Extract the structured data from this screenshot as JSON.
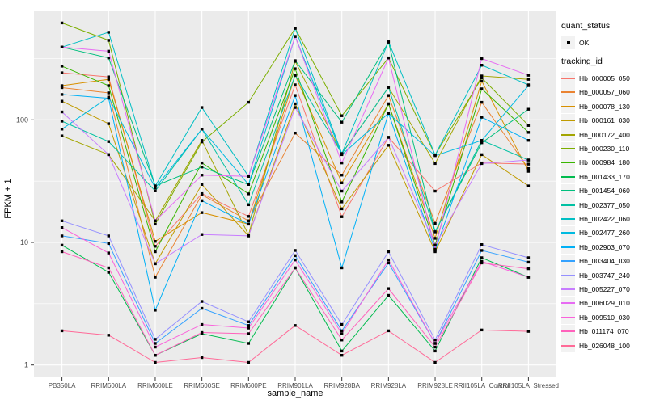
{
  "figure": {
    "background": "#FFFFFF",
    "panel_background": "#EBEBEB",
    "grid_major_color": "#FFFFFF",
    "grid_minor_color": "#FFFFFF",
    "tick_color": "#333333",
    "tick_label_color": "#4D4D4D",
    "point_color": "#000000"
  },
  "chart_data": {
    "type": "line",
    "title": "",
    "xlabel": "sample_name",
    "ylabel": "FPKM + 1",
    "y_scale": "log10",
    "y_ticks": [
      1,
      10,
      100
    ],
    "y_minor_ticks": [
      3.162,
      31.62,
      316.2
    ],
    "ylim": [
      0.79,
      770
    ],
    "grid": true,
    "legend_position": "right",
    "point_shape": "small-black-square",
    "categories": [
      "PB350LA",
      "RRIM600LA",
      "RRIM600LE",
      "RRIM600SE",
      "RRIM600PE",
      "RRIM901LA",
      "RRIM928BA",
      "RRIM928LA",
      "RRIM928LE",
      "RRII105LA_Control",
      "RRII105LA_Stressed"
    ],
    "series": [
      {
        "name": "Hb_000005_050",
        "color": "#F8766D",
        "values": [
          242,
          224,
          9.3,
          25,
          16.3,
          193,
          16.2,
          72,
          26.2,
          44.5,
          43.5
        ]
      },
      {
        "name": "Hb_000057_060",
        "color": "#EA8331",
        "values": [
          183,
          166,
          5.2,
          24.5,
          15,
          78,
          35.4,
          158,
          14.3,
          139,
          40
        ]
      },
      {
        "name": "Hb_000078_130",
        "color": "#D89000",
        "values": [
          190,
          214,
          10.2,
          17.5,
          14.1,
          231,
          30.6,
          135,
          10.8,
          207,
          38
        ]
      },
      {
        "name": "Hb_000161_030",
        "color": "#C09B00",
        "values": [
          142,
          93,
          6.7,
          29.7,
          11.3,
          135,
          18.8,
          62,
          8.4,
          52,
          28.9
        ]
      },
      {
        "name": "Hb_000172_400",
        "color": "#A3A500",
        "values": [
          74,
          52,
          15,
          68,
          11.5,
          300,
          53,
          184,
          44,
          228,
          214
        ]
      },
      {
        "name": "Hb_000230_110",
        "color": "#7CAE00",
        "values": [
          617,
          445,
          14.1,
          66,
          139,
          558,
          108,
          320,
          51.7,
          220,
          90
        ]
      },
      {
        "name": "Hb_000984_180",
        "color": "#39B600",
        "values": [
          274,
          190,
          8.4,
          44.5,
          24.9,
          261,
          21.4,
          135,
          9.5,
          179,
          79
        ]
      },
      {
        "name": "Hb_001433_170",
        "color": "#00BB4E",
        "values": [
          9.5,
          5.7,
          1.2,
          1.8,
          1.5,
          6.2,
          1.3,
          3.7,
          1.3,
          7.5,
          5.2
        ]
      },
      {
        "name": "Hb_001454_060",
        "color": "#00BF7D",
        "values": [
          392,
          320,
          28.9,
          41.2,
          29.7,
          304,
          95.7,
          430,
          12.2,
          65,
          122
        ]
      },
      {
        "name": "Hb_002377_050",
        "color": "#00C1A3",
        "values": [
          97.5,
          66.5,
          26.3,
          84,
          20.3,
          231,
          53,
          184,
          12.2,
          68,
          47
        ]
      },
      {
        "name": "Hb_002422_060",
        "color": "#00BFC4",
        "values": [
          392,
          518,
          28.9,
          126,
          34.6,
          558,
          53,
          433,
          51.7,
          279,
          193
        ]
      },
      {
        "name": "Hb_002477_260",
        "color": "#00BAE0",
        "values": [
          84,
          153,
          27.8,
          84,
          29.7,
          479,
          52,
          113,
          51,
          68,
          190
        ]
      },
      {
        "name": "Hb_002903_070",
        "color": "#00B0F6",
        "values": [
          161,
          150,
          2.8,
          21.9,
          14.1,
          158,
          6.2,
          113,
          8.6,
          105,
          68
        ]
      },
      {
        "name": "Hb_003404_030",
        "color": "#35A2FF",
        "values": [
          11.3,
          9.8,
          1.5,
          2.9,
          2.1,
          7.8,
          1.9,
          6.8,
          1.5,
          8.6,
          6.9
        ]
      },
      {
        "name": "Hb_003747_240",
        "color": "#9590FF",
        "values": [
          15,
          11.3,
          1.62,
          3.3,
          2.25,
          8.6,
          2.14,
          8.4,
          1.6,
          9.6,
          7.5
        ]
      },
      {
        "name": "Hb_005227_070",
        "color": "#C77CFF",
        "values": [
          116,
          52,
          6.7,
          11.6,
          11.3,
          126,
          26.2,
          72,
          9.5,
          44,
          47
        ]
      },
      {
        "name": "Hb_006029_010",
        "color": "#E76BF3",
        "values": [
          392,
          363,
          15,
          35.4,
          34.6,
          479,
          44.5,
          320,
          8.8,
          316,
          231
        ]
      },
      {
        "name": "Hb_009510_030",
        "color": "#FA62DB",
        "values": [
          13.2,
          8.2,
          1.4,
          2.14,
          2.0,
          7.2,
          1.8,
          7.2,
          1.5,
          7.0,
          5.2
        ]
      },
      {
        "name": "Hb_011174_070",
        "color": "#FF62BC",
        "values": [
          8.4,
          6.2,
          1.2,
          1.84,
          1.8,
          6.2,
          1.6,
          4.2,
          1.4,
          6.8,
          6.1
        ]
      },
      {
        "name": "Hb_026048_100",
        "color": "#FF6A98",
        "values": [
          1.9,
          1.75,
          1.05,
          1.15,
          1.05,
          2.1,
          1.2,
          1.9,
          1.05,
          1.93,
          1.88
        ]
      }
    ],
    "legend": {
      "quant_status_title": "quant_status",
      "ok_label": "OK",
      "tracking_id_title": "tracking_id"
    }
  }
}
